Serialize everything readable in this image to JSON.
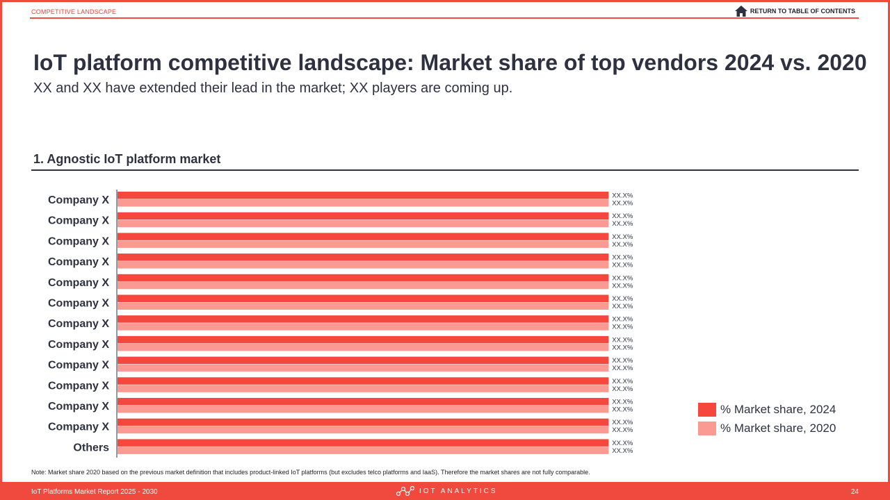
{
  "header": {
    "section_label": "COMPETITIVE LANDSCAPE",
    "return_label": "RETURN TO TABLE OF CONTENTS"
  },
  "title": "IoT platform competitive landscape: Market share of top vendors 2024 vs. 2020",
  "subtitle": "XX and XX have extended their lead in the market; XX players are coming up.",
  "section_heading": "1. Agnostic IoT platform market",
  "legend": {
    "items": [
      {
        "label": "% Market share, 2024",
        "color": "#f5473e"
      },
      {
        "label": "% Market share, 2020",
        "color": "#fa9a92"
      }
    ]
  },
  "chart_data": {
    "type": "bar",
    "orientation": "horizontal",
    "categories": [
      "Company X",
      "Company X",
      "Company X",
      "Company X",
      "Company X",
      "Company X",
      "Company X",
      "Company X",
      "Company X",
      "Company X",
      "Company X",
      "Company X",
      "Others"
    ],
    "series": [
      {
        "name": "% Market share, 2024",
        "color": "#f5473e",
        "values": [
          1,
          1,
          1,
          1,
          1,
          1,
          1,
          1,
          1,
          1,
          1,
          1,
          1
        ],
        "labels": [
          "XX.X%",
          "XX.X%",
          "XX.X%",
          "XX.X%",
          "XX.X%",
          "XX.X%",
          "XX.X%",
          "XX.X%",
          "XX.X%",
          "XX.X%",
          "XX.X%",
          "XX.X%",
          "XX.X%"
        ]
      },
      {
        "name": "% Market share, 2020",
        "color": "#fa9a92",
        "values": [
          1,
          1,
          1,
          1,
          1,
          1,
          1,
          1,
          1,
          1,
          1,
          1,
          1
        ],
        "labels": [
          "XX.X%",
          "XX.X%",
          "XX.X%",
          "XX.X%",
          "XX.X%",
          "XX.X%",
          "XX.X%",
          "XX.X%",
          "XX.X%",
          "XX.X%",
          "XX.X%",
          "XX.X%",
          "XX.X%"
        ]
      }
    ],
    "xlim": [
      0,
      1.6
    ],
    "grid": false,
    "legend_position": "bottom-right"
  },
  "note": "Note: Market share 2020 based on the previous market definition that includes product-linked IoT platforms (but excludes telco platforms and IaaS). Therefore the market shares are not fully comparable.",
  "footer": {
    "report_name": "IoT Platforms Market Report 2025 - 2030",
    "logo_text": "IOT ANALYTICS",
    "page_number": "24"
  },
  "colors": {
    "accent": "#f04a3e",
    "text": "#2e3240"
  }
}
